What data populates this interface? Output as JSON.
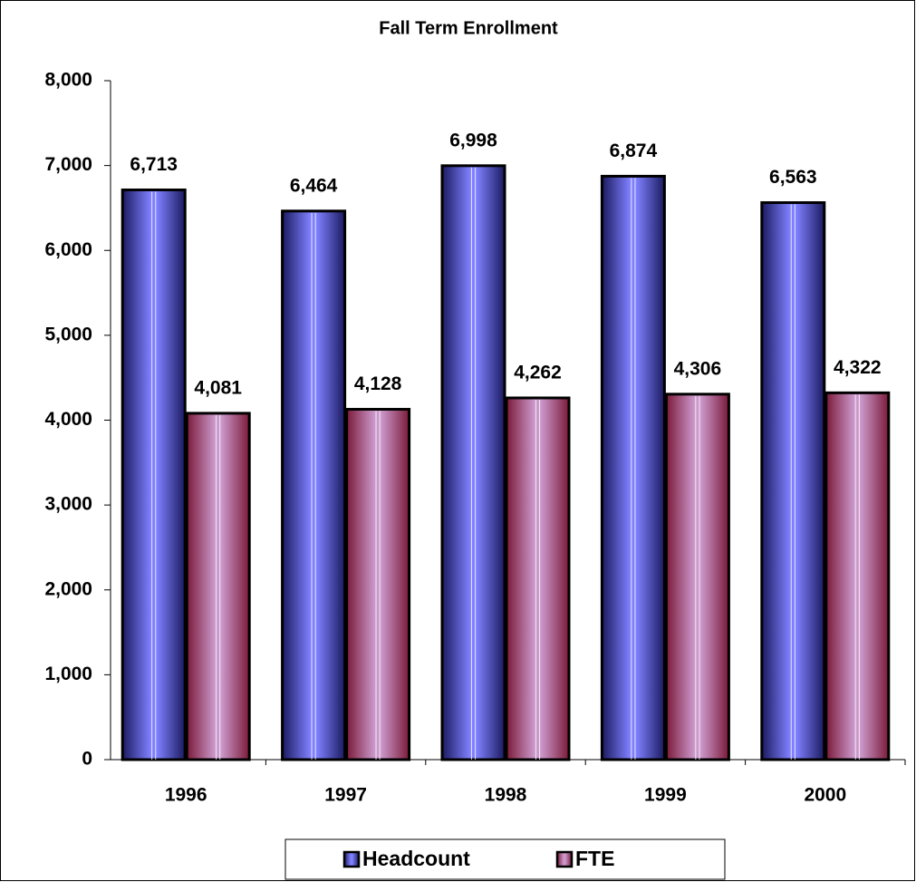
{
  "chart_data": {
    "type": "bar",
    "title": "Fall Term Enrollment",
    "categories": [
      "1996",
      "1997",
      "1998",
      "1999",
      "2000"
    ],
    "series": [
      {
        "name": "Headcount",
        "color": "#8080ff",
        "values": [
          6713,
          6464,
          6998,
          6874,
          6563
        ],
        "value_labels": [
          "6,713",
          "6,464",
          "6,998",
          "6,874",
          "6,563"
        ]
      },
      {
        "name": "FTE",
        "color": "#cc99cc",
        "values": [
          4081,
          4128,
          4262,
          4306,
          4322
        ],
        "value_labels": [
          "4,081",
          "4,128",
          "4,262",
          "4,306",
          "4,322"
        ]
      }
    ],
    "ylim": [
      0,
      8000
    ],
    "yticks": [
      0,
      {
        "value": 1000,
        "label": "1,000"
      },
      {
        "value": 2000,
        "label": "2,000"
      },
      {
        "value": 3000,
        "label": "3,000"
      },
      {
        "value": 4000,
        "label": "4,000"
      },
      {
        "value": 5000,
        "label": "5,000"
      },
      {
        "value": 6000,
        "label": "6,000"
      },
      {
        "value": 7000,
        "label": "7,000"
      },
      {
        "value": 8000,
        "label": "8,000"
      }
    ],
    "grid": false,
    "legend": "bottom"
  }
}
